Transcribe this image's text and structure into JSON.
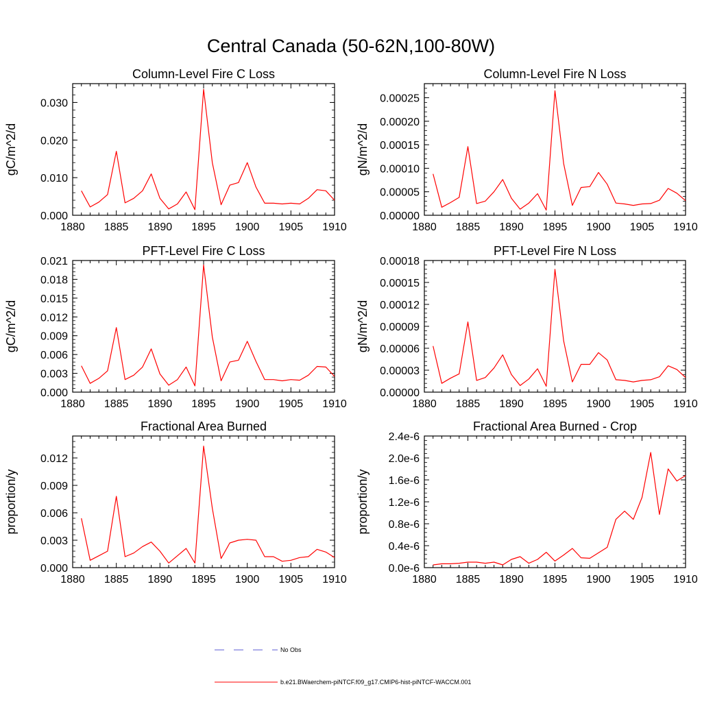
{
  "figure": {
    "title": "Central Canada (50-62N,100-80W)"
  },
  "legend": {
    "items": [
      {
        "label": "No Obs",
        "color": "#5b5bd6",
        "dashed": true
      },
      {
        "label": "b.e21.BWaerchem-piNTCF.f09_g17.CMIP6-hist-piNTCF-WACCM.001",
        "color": "#ff0000",
        "dashed": false
      }
    ]
  },
  "chart_data": [
    {
      "type": "line",
      "title": "Column-Level Fire C Loss",
      "xlabel": "",
      "ylabel": "gC/m^2/d",
      "xlim": [
        1880,
        1910
      ],
      "ylim": [
        0,
        0.035
      ],
      "xticks": [
        1880,
        1885,
        1890,
        1895,
        1900,
        1905,
        1910
      ],
      "yticks": [
        0,
        0.01,
        0.02,
        0.03
      ],
      "ytick_labels": [
        "0.000",
        "0.010",
        "0.020",
        "0.030"
      ],
      "grid": false,
      "series": [
        {
          "name": "b.e21.BWaerchem-piNTCF.f09_g17.CMIP6-hist-piNTCF-WACCM.001",
          "color": "#ff0000",
          "x": [
            1881,
            1882,
            1883,
            1884,
            1885,
            1886,
            1887,
            1888,
            1889,
            1890,
            1891,
            1892,
            1893,
            1894,
            1895,
            1896,
            1897,
            1898,
            1899,
            1900,
            1901,
            1902,
            1903,
            1904,
            1905,
            1906,
            1907,
            1908,
            1909,
            1910
          ],
          "y": [
            0.0065,
            0.0022,
            0.0035,
            0.0055,
            0.017,
            0.0033,
            0.0045,
            0.0065,
            0.011,
            0.0045,
            0.0017,
            0.003,
            0.0062,
            0.0015,
            0.0335,
            0.014,
            0.0028,
            0.008,
            0.0087,
            0.014,
            0.0075,
            0.0032,
            0.0032,
            0.003,
            0.0032,
            0.003,
            0.0045,
            0.0068,
            0.0065,
            0.004
          ]
        }
      ]
    },
    {
      "type": "line",
      "title": "Column-Level Fire N Loss",
      "xlabel": "",
      "ylabel": "gN/m^2/d",
      "xlim": [
        1880,
        1910
      ],
      "ylim": [
        0,
        0.00028
      ],
      "xticks": [
        1880,
        1885,
        1890,
        1895,
        1900,
        1905,
        1910
      ],
      "yticks": [
        0,
        5e-05,
        0.0001,
        0.00015,
        0.0002,
        0.00025
      ],
      "ytick_labels": [
        "0.00000",
        "0.00005",
        "0.00010",
        "0.00015",
        "0.00020",
        "0.00025"
      ],
      "grid": false,
      "series": [
        {
          "name": "b.e21.BWaerchem-piNTCF.f09_g17.CMIP6-hist-piNTCF-WACCM.001",
          "color": "#ff0000",
          "x": [
            1881,
            1882,
            1883,
            1884,
            1885,
            1886,
            1887,
            1888,
            1889,
            1890,
            1891,
            1892,
            1893,
            1894,
            1895,
            1896,
            1897,
            1898,
            1899,
            1900,
            1901,
            1902,
            1903,
            1904,
            1905,
            1906,
            1907,
            1908,
            1909,
            1910
          ],
          "y": [
            8.8e-05,
            1.7e-05,
            2.7e-05,
            3.8e-05,
            0.000146,
            2.5e-05,
            3e-05,
            5e-05,
            7.6e-05,
            3.6e-05,
            1.3e-05,
            2.6e-05,
            4.6e-05,
            1.1e-05,
            0.000265,
            0.00011,
            2.1e-05,
            5.9e-05,
            6.1e-05,
            9.1e-05,
            6.6e-05,
            2.6e-05,
            2.4e-05,
            2.1e-05,
            2.4e-05,
            2.5e-05,
            3.2e-05,
            5.7e-05,
            4.7e-05,
            3.1e-05
          ]
        }
      ]
    },
    {
      "type": "line",
      "title": "PFT-Level Fire C Loss",
      "xlabel": "",
      "ylabel": "gC/m^2/d",
      "xlim": [
        1880,
        1910
      ],
      "ylim": [
        0,
        0.021
      ],
      "xticks": [
        1880,
        1885,
        1890,
        1895,
        1900,
        1905,
        1910
      ],
      "yticks": [
        0,
        0.003,
        0.006,
        0.009,
        0.012,
        0.015,
        0.018,
        0.021
      ],
      "ytick_labels": [
        "0.000",
        "0.003",
        "0.006",
        "0.009",
        "0.012",
        "0.015",
        "0.018",
        "0.021"
      ],
      "grid": false,
      "series": [
        {
          "name": "b.e21.BWaerchem-piNTCF.f09_g17.CMIP6-hist-piNTCF-WACCM.001",
          "color": "#ff0000",
          "x": [
            1881,
            1882,
            1883,
            1884,
            1885,
            1886,
            1887,
            1888,
            1889,
            1890,
            1891,
            1892,
            1893,
            1894,
            1895,
            1896,
            1897,
            1898,
            1899,
            1900,
            1901,
            1902,
            1903,
            1904,
            1905,
            1906,
            1907,
            1908,
            1909,
            1910
          ],
          "y": [
            0.0042,
            0.0014,
            0.0022,
            0.0034,
            0.0103,
            0.002,
            0.0027,
            0.004,
            0.0069,
            0.0029,
            0.0011,
            0.002,
            0.004,
            0.001,
            0.0203,
            0.0088,
            0.0018,
            0.0048,
            0.0051,
            0.0081,
            0.0049,
            0.002,
            0.002,
            0.0018,
            0.002,
            0.0019,
            0.0027,
            0.0041,
            0.004,
            0.0025
          ]
        }
      ]
    },
    {
      "type": "line",
      "title": "PFT-Level Fire N Loss",
      "xlabel": "",
      "ylabel": "gN/m^2/d",
      "xlim": [
        1880,
        1910
      ],
      "ylim": [
        0,
        0.00018
      ],
      "xticks": [
        1880,
        1885,
        1890,
        1895,
        1900,
        1905,
        1910
      ],
      "yticks": [
        0,
        3e-05,
        6e-05,
        9e-05,
        0.00012,
        0.00015,
        0.00018
      ],
      "ytick_labels": [
        "0.00000",
        "0.00003",
        "0.00006",
        "0.00009",
        "0.00012",
        "0.00015",
        "0.00018"
      ],
      "grid": false,
      "series": [
        {
          "name": "b.e21.BWaerchem-piNTCF.f09_g17.CMIP6-hist-piNTCF-WACCM.001",
          "color": "#ff0000",
          "x": [
            1881,
            1882,
            1883,
            1884,
            1885,
            1886,
            1887,
            1888,
            1889,
            1890,
            1891,
            1892,
            1893,
            1894,
            1895,
            1896,
            1897,
            1898,
            1899,
            1900,
            1901,
            1902,
            1903,
            1904,
            1905,
            1906,
            1907,
            1908,
            1909,
            1910
          ],
          "y": [
            6.3e-05,
            1.2e-05,
            1.9e-05,
            2.5e-05,
            9.6e-05,
            1.6e-05,
            2e-05,
            3.3e-05,
            5.1e-05,
            2.4e-05,
            9e-06,
            1.8e-05,
            3.2e-05,
            8e-06,
            0.000168,
            7e-05,
            1.4e-05,
            3.8e-05,
            3.8e-05,
            5.4e-05,
            4.4e-05,
            1.7e-05,
            1.6e-05,
            1.4e-05,
            1.6e-05,
            1.7e-05,
            2.1e-05,
            3.6e-05,
            3.1e-05,
            2e-05
          ]
        }
      ]
    },
    {
      "type": "line",
      "title": "Fractional Area Burned",
      "xlabel": "",
      "ylabel": "proportion/y",
      "xlim": [
        1880,
        1910
      ],
      "ylim": [
        0,
        0.0144
      ],
      "xticks": [
        1880,
        1885,
        1890,
        1895,
        1900,
        1905,
        1910
      ],
      "yticks": [
        0,
        0.003,
        0.006,
        0.009,
        0.012
      ],
      "ytick_labels": [
        "0.000",
        "0.003",
        "0.006",
        "0.009",
        "0.012"
      ],
      "grid": false,
      "series": [
        {
          "name": "b.e21.BWaerchem-piNTCF.f09_g17.CMIP6-hist-piNTCF-WACCM.001",
          "color": "#ff0000",
          "x": [
            1881,
            1882,
            1883,
            1884,
            1885,
            1886,
            1887,
            1888,
            1889,
            1890,
            1891,
            1892,
            1893,
            1894,
            1895,
            1896,
            1897,
            1898,
            1899,
            1900,
            1901,
            1902,
            1903,
            1904,
            1905,
            1906,
            1907,
            1908,
            1909,
            1910
          ],
          "y": [
            0.0054,
            0.0008,
            0.0013,
            0.0018,
            0.0078,
            0.0012,
            0.0016,
            0.0023,
            0.0028,
            0.0018,
            0.0005,
            0.0013,
            0.0021,
            0.0005,
            0.0133,
            0.0065,
            0.001,
            0.0027,
            0.003,
            0.0031,
            0.003,
            0.0012,
            0.0012,
            0.0007,
            0.0008,
            0.0011,
            0.0012,
            0.002,
            0.0017,
            0.0011
          ]
        }
      ]
    },
    {
      "type": "line",
      "title": "Fractional Area Burned - Crop",
      "xlabel": "",
      "ylabel": "proportion/y",
      "xlim": [
        1880,
        1910
      ],
      "ylim": [
        0,
        2.4e-06
      ],
      "xticks": [
        1880,
        1885,
        1890,
        1895,
        1900,
        1905,
        1910
      ],
      "yticks": [
        0,
        4e-07,
        8e-07,
        1.2e-06,
        1.6e-06,
        2e-06,
        2.4e-06
      ],
      "ytick_labels": [
        "0.0e-6",
        "0.4e-6",
        "0.8e-6",
        "1.2e-6",
        "1.6e-6",
        "2.0e-6",
        "2.4e-6"
      ],
      "grid": false,
      "series": [
        {
          "name": "b.e21.BWaerchem-piNTCF.f09_g17.CMIP6-hist-piNTCF-WACCM.001",
          "color": "#ff0000",
          "x": [
            1881,
            1882,
            1883,
            1884,
            1885,
            1886,
            1887,
            1888,
            1889,
            1890,
            1891,
            1892,
            1893,
            1894,
            1895,
            1896,
            1897,
            1898,
            1899,
            1900,
            1901,
            1902,
            1903,
            1904,
            1905,
            1906,
            1907,
            1908,
            1909,
            1910
          ],
          "y": [
            5e-08,
            7e-08,
            7e-08,
            8e-08,
            1e-07,
            1e-07,
            8e-08,
            1e-07,
            5e-08,
            1.5e-07,
            2e-07,
            8e-08,
            1.5e-07,
            2.8e-07,
            1.2e-07,
            2.3e-07,
            3.5e-07,
            1.8e-07,
            1.7e-07,
            2.7e-07,
            3.7e-07,
            8.8e-07,
            1.03e-06,
            8.8e-07,
            1.28e-06,
            2.1e-06,
            9.7e-07,
            1.8e-06,
            1.58e-06,
            1.68e-06
          ]
        }
      ]
    }
  ]
}
